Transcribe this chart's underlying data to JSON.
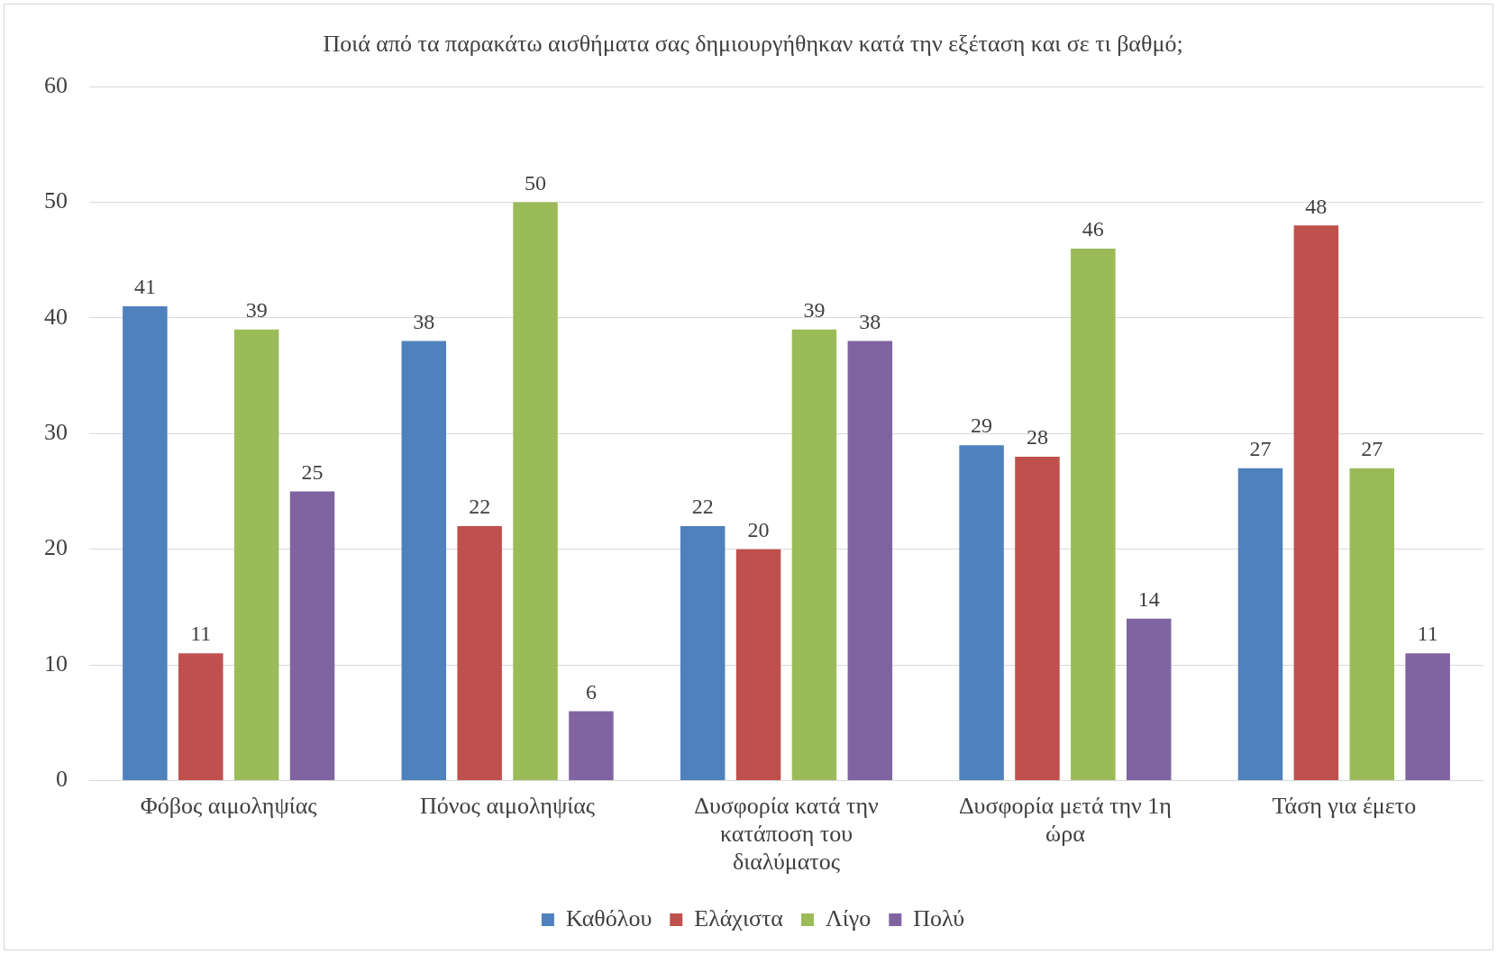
{
  "chart_data": {
    "type": "bar",
    "title": "Ποιά από τα παρακάτω αισθήματα σας δημιουργήθηκαν κατά την εξέταση και σε τι βαθμό;",
    "categories": [
      "Φόβος αιμοληψίας",
      "Πόνος αιμοληψίας",
      "Δυσφορία κατά την κατάποση του διαλύματος",
      "Δυσφορία μετά την 1η ώρα",
      "Τάση για έμετο"
    ],
    "series": [
      {
        "name": "Καθόλου",
        "color": "#4f81bd",
        "values": [
          41,
          38,
          22,
          29,
          27
        ]
      },
      {
        "name": "Ελάχιστα",
        "color": "#c0504d",
        "values": [
          11,
          22,
          20,
          28,
          48
        ]
      },
      {
        "name": "Λίγο",
        "color": "#9bbb59",
        "values": [
          39,
          50,
          39,
          46,
          27
        ]
      },
      {
        "name": "Πολύ",
        "color": "#8064a2",
        "values": [
          25,
          6,
          38,
          14,
          11
        ]
      }
    ],
    "ylim": [
      0,
      60
    ],
    "yticks": [
      0,
      10,
      20,
      30,
      40,
      50,
      60
    ],
    "grid": "y",
    "legend": "bottom",
    "data_labels": true
  }
}
